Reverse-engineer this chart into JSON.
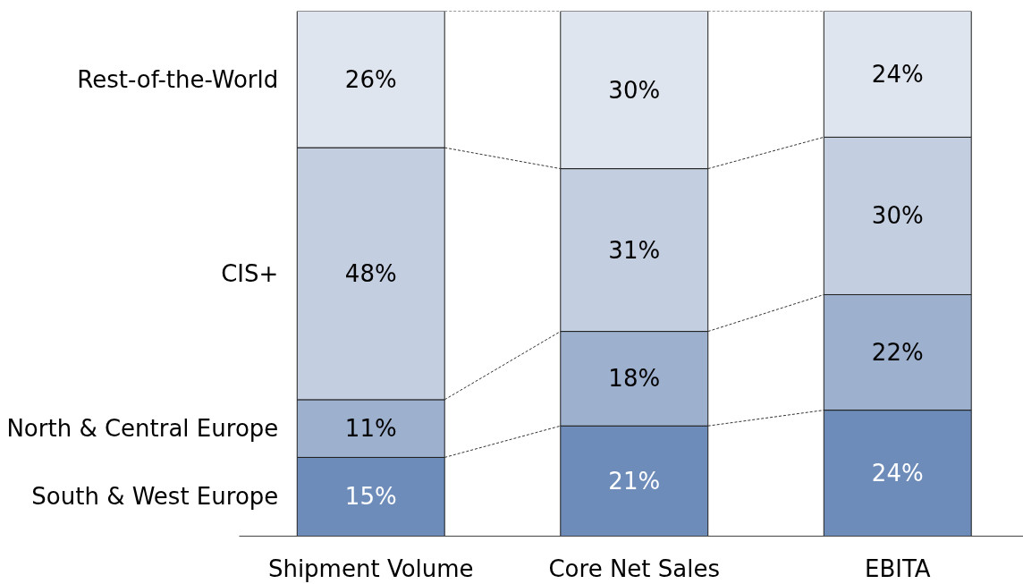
{
  "chart_data": {
    "type": "bar",
    "stacked": true,
    "categories": [
      "Shipment Volume",
      "Core Net Sales",
      "EBITA"
    ],
    "series": [
      {
        "name": "South & West Europe",
        "color": "#6e8cba",
        "values": [
          15,
          21,
          24
        ],
        "value_labels": [
          "15%",
          "21%",
          "24%"
        ]
      },
      {
        "name": "North & Central Europe",
        "color": "#9db0ce",
        "values": [
          11,
          18,
          22
        ],
        "value_labels": [
          "11%",
          "18%",
          "22%"
        ]
      },
      {
        "name": "CIS+",
        "color": "#c3cee1",
        "values": [
          48,
          31,
          30
        ],
        "value_labels": [
          "48%",
          "31%",
          "30%"
        ]
      },
      {
        "name": "Rest-of-the-World",
        "color": "#dfe5ef",
        "values": [
          26,
          30,
          24
        ],
        "value_labels": [
          "26%",
          "30%",
          "24%"
        ]
      }
    ]
  }
}
